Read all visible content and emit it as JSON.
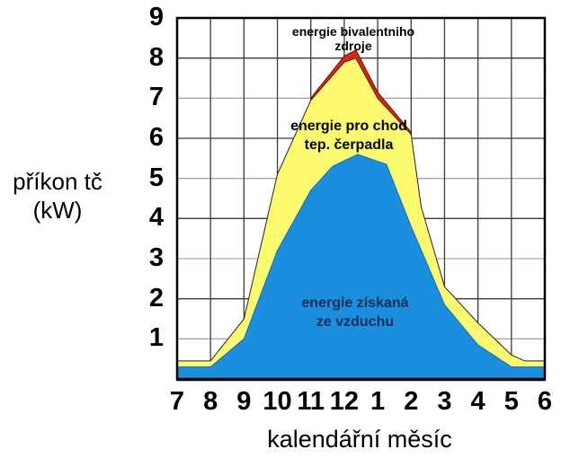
{
  "figure": {
    "y_axis_title_line1": "příkon tč",
    "y_axis_title_line2": "(kW)",
    "x_axis_title": "kalendářní měsíc"
  },
  "annotations": {
    "bivalent": {
      "line1": "energie bivalentniho",
      "line2": "zdroje"
    },
    "pump": {
      "line1": "energie pro chod",
      "line2": "tep. čerpadla"
    },
    "air": {
      "line1": "energie získaná",
      "line2": "ze vzduchu"
    }
  },
  "colors": {
    "air_area": "#1b8ede",
    "air_stroke": "#0f6bb8",
    "pump_area": "#fbf96d",
    "pump_stroke": "#222222",
    "bivalent_area": "#d42a12",
    "bivalent_stroke": "#6b1200",
    "grid_major": "#3a3a3a",
    "grid_minor": "#a9a9a9",
    "border": "#000000",
    "background": "#ffffff"
  },
  "chart_data": {
    "type": "area",
    "stacked": true,
    "title": "",
    "xlabel": "kalendářní měsíc",
    "ylabel": "příkon tč (kW)",
    "x_categories": [
      "7",
      "8",
      "9",
      "10",
      "11",
      "12",
      "1",
      "2",
      "3",
      "4",
      "5",
      "6"
    ],
    "y_ticks": [
      1,
      2,
      3,
      4,
      5,
      6,
      7,
      8,
      9
    ],
    "ylim": [
      0,
      9
    ],
    "grid": true,
    "legend": "labels drawn inside areas",
    "units": "kW; points are [month-index 0..11 along axis 7..6, cumulative stacked top value]",
    "series": [
      {
        "name": "energie získaná ze vzduchu",
        "role": "bottom layer (blue)",
        "points": [
          [
            0,
            0.3
          ],
          [
            1,
            0.3
          ],
          [
            2,
            1.0
          ],
          [
            3,
            3.2
          ],
          [
            4,
            4.7
          ],
          [
            4.65,
            5.3
          ],
          [
            5.4,
            5.6
          ],
          [
            6.26,
            5.35
          ],
          [
            7,
            3.8
          ],
          [
            8,
            1.85
          ],
          [
            9,
            0.85
          ],
          [
            10,
            0.3
          ],
          [
            11,
            0.3
          ]
        ]
      },
      {
        "name": "energie pro chod tep. čerpadla",
        "role": "middle layer (yellow), values are stacked totals",
        "points": [
          [
            0,
            0.45
          ],
          [
            1,
            0.45
          ],
          [
            2,
            1.5
          ],
          [
            3,
            5.1
          ],
          [
            4,
            6.95
          ],
          [
            5,
            7.9
          ],
          [
            5.35,
            8.0
          ],
          [
            6,
            7.0
          ],
          [
            7,
            6.1
          ],
          [
            7.3,
            4.3
          ],
          [
            8,
            2.3
          ],
          [
            9,
            1.4
          ],
          [
            10,
            0.6
          ],
          [
            10.4,
            0.45
          ],
          [
            11,
            0.45
          ]
        ]
      },
      {
        "name": "energie bivalentniho zdroje",
        "role": "top sliver (red), values are stacked totals; exists only near winter peak",
        "points": [
          [
            4,
            7.0
          ],
          [
            5,
            8.05
          ],
          [
            5.35,
            8.2
          ],
          [
            6,
            7.15
          ],
          [
            7,
            6.15
          ]
        ]
      }
    ]
  }
}
